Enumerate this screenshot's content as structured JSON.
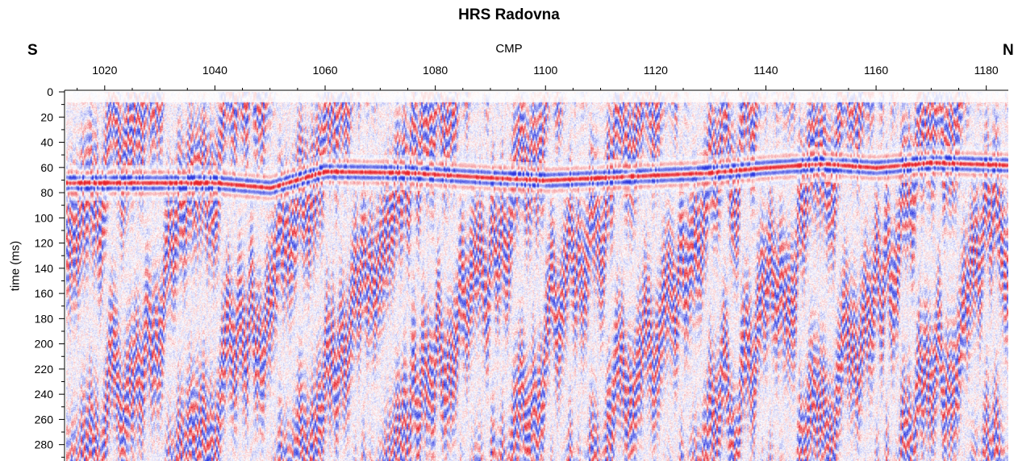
{
  "chart_data": {
    "type": "heatmap",
    "title": "HRS Radovna",
    "xlabel": "CMP",
    "ylabel": "time (ms)",
    "direction_left": "S",
    "direction_right": "N",
    "xlim": [
      1013,
      1184
    ],
    "ylim": [
      0,
      293
    ],
    "x_ticks": [
      1020,
      1040,
      1060,
      1080,
      1100,
      1120,
      1140,
      1160,
      1180
    ],
    "y_ticks": [
      0,
      20,
      40,
      60,
      80,
      100,
      120,
      140,
      160,
      180,
      200,
      220,
      240,
      260,
      280
    ],
    "colormap": {
      "positive": "#e8242c",
      "zero": "#ffffff",
      "negative": "#2a36e0"
    },
    "reflectors": [
      {
        "cmp": [
          1013,
          1030,
          1040,
          1050,
          1060,
          1075,
          1090,
          1100,
          1110,
          1120,
          1130,
          1140,
          1150,
          1160,
          1170,
          1184
        ],
        "time_ms": [
          72,
          72,
          72,
          76,
          63,
          64,
          68,
          70,
          68,
          66,
          64,
          60,
          57,
          60,
          56,
          58
        ]
      }
    ]
  }
}
